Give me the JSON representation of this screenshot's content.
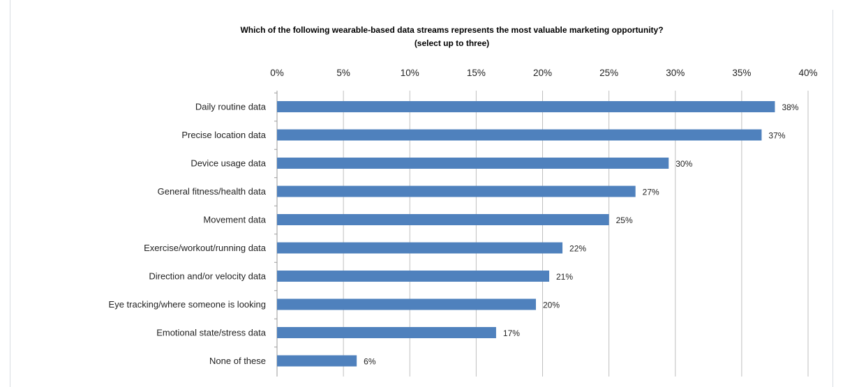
{
  "chart_data": {
    "type": "bar",
    "orientation": "horizontal",
    "title": "Which of the following wearable-based data streams represents the most valuable marketing opportunity?",
    "subtitle": "(select up to three)",
    "categories": [
      "Daily routine data",
      "Precise location data",
      "Device usage data",
      "General fitness/health data",
      "Movement data",
      "Exercise/workout/running data",
      "Direction and/or velocity data",
      "Eye tracking/where someone is looking",
      "Emotional state/stress data",
      "None of these"
    ],
    "values": [
      37.5,
      36.5,
      29.5,
      27.0,
      25.0,
      21.5,
      20.5,
      19.5,
      16.5,
      6.0
    ],
    "data_labels": [
      "38%",
      "37%",
      "30%",
      "27%",
      "25%",
      "22%",
      "21%",
      "20%",
      "17%",
      "6%"
    ],
    "x_ticks": [
      "0%",
      "5%",
      "10%",
      "15%",
      "20%",
      "25%",
      "30%",
      "35%",
      "40%"
    ],
    "xlim": [
      0,
      40
    ],
    "x_axis_position": "top",
    "grid": true,
    "bar_color": "#4f81bd"
  }
}
